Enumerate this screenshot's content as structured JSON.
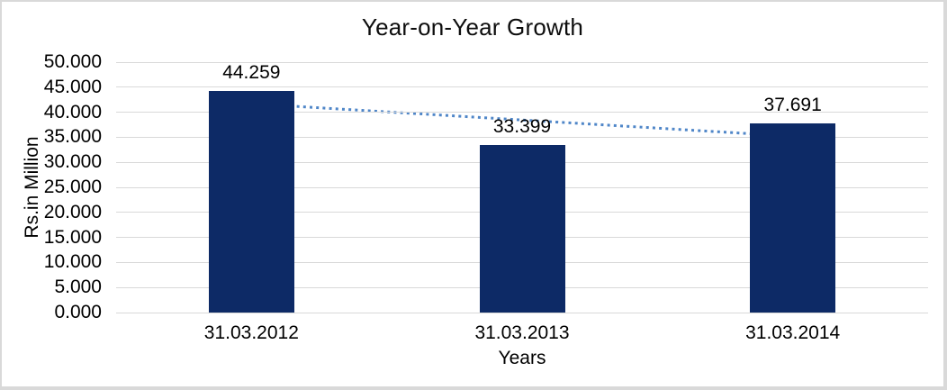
{
  "frame": {
    "background": "#ffffff",
    "border_color": "#d9d9d9"
  },
  "chart_data": {
    "type": "bar",
    "title": "Year-on-Year Growth",
    "xlabel": "Years",
    "ylabel": "Rs.in Million",
    "categories": [
      "31.03.2012",
      "31.03.2013",
      "31.03.2014"
    ],
    "values": [
      44.259,
      33.399,
      37.691
    ],
    "value_labels": [
      "44.259",
      "33.399",
      "37.691"
    ],
    "ylim": [
      0,
      50
    ],
    "ytick_values": [
      0,
      5,
      10,
      15,
      20,
      25,
      30,
      35,
      40,
      45,
      50
    ],
    "ytick_labels": [
      "0.000",
      "5.000",
      "10.000",
      "15.000",
      "20.000",
      "25.000",
      "30.000",
      "35.000",
      "40.000",
      "45.000",
      "50.000"
    ],
    "grid": true,
    "legend": "none",
    "colors": {
      "bar": "#0d2a66",
      "gridline": "#d9d9d9",
      "axis_line": "#d9d9d9",
      "trendline": "#4f86c8",
      "text": "#000000"
    },
    "trendline": {
      "type": "linear",
      "style": "dotted",
      "start_value": 41.7,
      "end_value": 35.2
    }
  }
}
